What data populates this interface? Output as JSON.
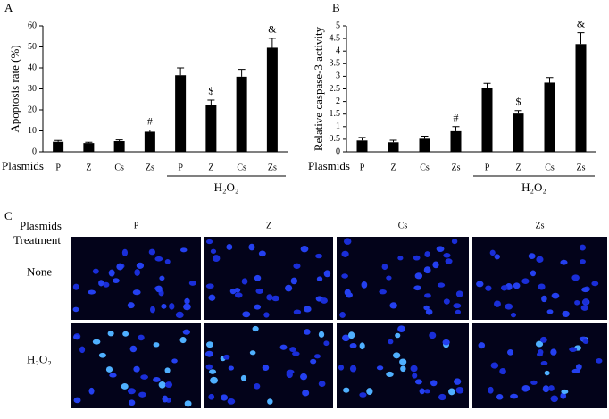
{
  "chart_data": [
    {
      "type": "bar",
      "panel": "A",
      "y_label": "Apoptosis rate (%)",
      "category_label": "Plasmids",
      "group_label": "H₂O₂",
      "categories": [
        "P",
        "Z",
        "Cs",
        "Zs",
        "P",
        "Z",
        "Cs",
        "Zs"
      ],
      "values": [
        4.8,
        4.2,
        5.1,
        9.6,
        36.5,
        22.5,
        35.8,
        49.6
      ],
      "errors": [
        0.6,
        0.4,
        0.6,
        0.8,
        3.5,
        2.2,
        3.5,
        4.5
      ],
      "markers": [
        null,
        null,
        null,
        "#",
        null,
        "$",
        null,
        "&"
      ],
      "color": "#000000",
      "ylim": [
        0,
        60
      ],
      "yticks": [
        0,
        10,
        20,
        30,
        40,
        50,
        60
      ]
    },
    {
      "type": "bar",
      "panel": "B",
      "y_label": "Relative caspase-3 activity",
      "category_label": "Plasmids",
      "group_label": "H₂O₂",
      "categories": [
        "P",
        "Z",
        "Cs",
        "Zs",
        "P",
        "Z",
        "Cs",
        "Zs"
      ],
      "values": [
        0.45,
        0.38,
        0.52,
        0.82,
        2.52,
        1.52,
        2.75,
        4.28
      ],
      "errors": [
        0.12,
        0.08,
        0.1,
        0.18,
        0.2,
        0.12,
        0.2,
        0.45
      ],
      "markers": [
        null,
        null,
        null,
        "#",
        null,
        "$",
        null,
        "&"
      ],
      "color": "#000000",
      "ylim": [
        0,
        5
      ],
      "yticks": [
        0,
        0.5,
        1,
        1.5,
        2,
        2.5,
        3,
        3.5,
        4,
        4.5,
        5
      ]
    }
  ],
  "panel_c": {
    "panel": "C",
    "column_header": "Plasmids",
    "row_header": "Treatment",
    "columns": [
      "P",
      "Z",
      "Cs",
      "Zs"
    ],
    "rows": [
      "None",
      "H₂O₂"
    ]
  }
}
